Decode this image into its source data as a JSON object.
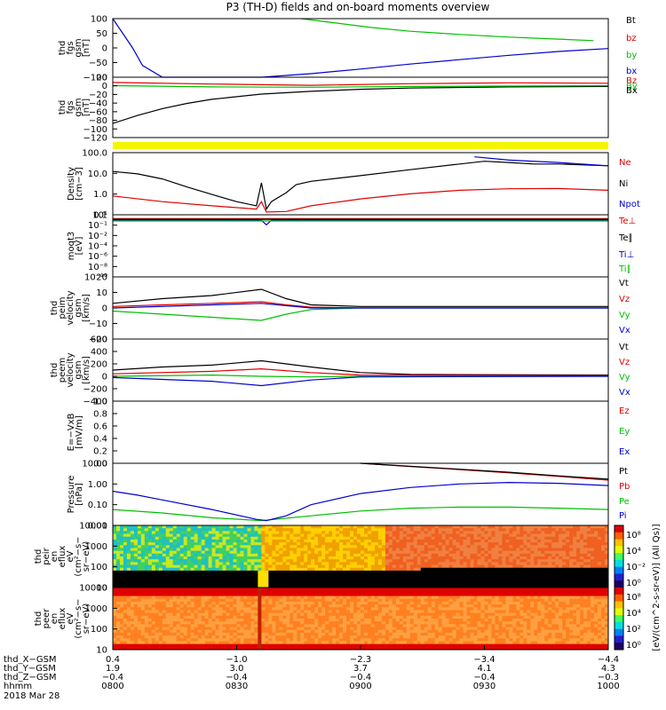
{
  "title": "P3 (TH-D) fields and on-board moments overview",
  "colors": {
    "black": "#000000",
    "red": "#e00000",
    "green": "#00c000",
    "blue": "#0000d0",
    "yellow": "#f5f500"
  },
  "chart_data": [
    {
      "type": "line",
      "panel": "fgs_top",
      "ylabel_lines": [
        "thd",
        "fgs",
        "gsm",
        "[nT]"
      ],
      "ylim": [
        -100,
        100
      ],
      "yticks": [
        "100",
        "50",
        "0",
        "−50",
        "−100"
      ],
      "legend": [
        "Bt",
        "bz",
        "by",
        "bx"
      ],
      "series": [
        {
          "name": "by",
          "x": [
            0.38,
            0.45,
            0.52,
            0.6,
            0.7,
            0.8,
            0.9,
            0.97
          ],
          "y": [
            100,
            85,
            70,
            57,
            46,
            37,
            30,
            25
          ]
        },
        {
          "name": "bx",
          "x": [
            0.0,
            0.02,
            0.04,
            0.06,
            0.1,
            0.2,
            0.3,
            0.4,
            0.5,
            0.6,
            0.7,
            0.8,
            0.9,
            1.0
          ],
          "y": [
            100,
            50,
            0,
            -60,
            -100,
            -100,
            -100,
            -88,
            -72,
            -55,
            -40,
            -25,
            -12,
            -2
          ]
        }
      ]
    },
    {
      "type": "line",
      "panel": "fgs_bottom",
      "ylabel_lines": [
        "thd",
        "fgs",
        "gsm",
        "[nT]"
      ],
      "ylim": [
        -130,
        20
      ],
      "yticks": [
        "20",
        "0",
        "−20",
        "−40",
        "−60",
        "−80",
        "−100",
        "−120"
      ],
      "legend": [
        "Bz",
        "By",
        "Bx"
      ],
      "series": [
        {
          "name": "Bx",
          "x": [
            0.0,
            0.05,
            0.1,
            0.15,
            0.2,
            0.3,
            0.4,
            0.5,
            0.6,
            0.8,
            1.0
          ],
          "y": [
            -95,
            -75,
            -58,
            -45,
            -35,
            -22,
            -15,
            -10,
            -7,
            -4,
            -3
          ]
        },
        {
          "name": "Bz",
          "x": [
            0.0,
            0.2,
            0.4,
            0.6,
            0.8,
            1.0
          ],
          "y": [
            7,
            3,
            0,
            4,
            6,
            5
          ]
        },
        {
          "name": "By",
          "x": [
            0.0,
            0.2,
            0.4,
            0.6,
            0.8,
            1.0
          ],
          "y": [
            -1,
            -4,
            -5,
            -3,
            -2,
            -1
          ]
        }
      ]
    },
    {
      "type": "line",
      "panel": "density",
      "ylabel_lines": [
        "Density",
        "[cm−3]"
      ],
      "yscale": "log",
      "ylim": [
        0.1,
        200
      ],
      "yticks": [
        "100.0",
        "10.0",
        "1.0",
        "0.1"
      ],
      "legend": [
        "Ne",
        "Ni",
        "Npot"
      ],
      "series": [
        {
          "name": "Ni",
          "x": [
            0.0,
            0.05,
            0.1,
            0.15,
            0.2,
            0.25,
            0.29,
            0.3,
            0.31,
            0.32,
            0.35,
            0.37,
            0.4,
            0.5,
            0.6,
            0.7,
            0.75,
            0.8,
            0.85,
            0.9,
            1.0
          ],
          "y": [
            20,
            15,
            8,
            3,
            1.2,
            0.5,
            0.3,
            5,
            0.2,
            0.5,
            1.5,
            4,
            6,
            12,
            25,
            50,
            70,
            60,
            50,
            50,
            40
          ]
        },
        {
          "name": "Ne",
          "x": [
            0.0,
            0.1,
            0.2,
            0.29,
            0.3,
            0.31,
            0.35,
            0.4,
            0.5,
            0.6,
            0.7,
            0.8,
            0.9,
            1.0
          ],
          "y": [
            1.0,
            0.5,
            0.3,
            0.2,
            0.5,
            0.14,
            0.15,
            0.3,
            0.7,
            1.3,
            2.0,
            2.4,
            2.5,
            2.0
          ]
        },
        {
          "name": "Npot",
          "x": [
            0.73,
            0.8,
            0.9,
            1.0
          ],
          "y": [
            120,
            80,
            60,
            40
          ]
        }
      ]
    },
    {
      "type": "line",
      "panel": "temperature",
      "ylabel_lines": [
        "moqt3",
        "[eV]"
      ],
      "yscale": "log",
      "ylim": [
        1e-10,
        20
      ],
      "yticks": [
        "10¹",
        "10⁻¹",
        "10⁻²",
        "10⁻⁴",
        "10⁻⁶",
        "10⁻⁸",
        "10⁻¹⁰"
      ],
      "legend": [
        "Te⊥",
        "Te∥",
        "Ti⊥",
        "Ti∥"
      ],
      "series": [
        {
          "name": "Te⊥",
          "x": [
            0.0,
            0.5,
            1.0
          ],
          "y": [
            4,
            4,
            4
          ]
        },
        {
          "name": "Te∥",
          "x": [
            0.0,
            0.5,
            1.0
          ],
          "y": [
            3,
            3,
            3
          ]
        },
        {
          "name": "Ti⊥",
          "x": [
            0.0,
            0.3,
            0.31,
            0.32,
            1.0
          ],
          "y": [
            2,
            2,
            0.3,
            2,
            2
          ]
        },
        {
          "name": "Ti∥",
          "x": [
            0.0,
            0.5,
            1.0
          ],
          "y": [
            1.5,
            1.5,
            1.5
          ]
        }
      ]
    },
    {
      "type": "line",
      "panel": "peim_velocity",
      "ylabel_lines": [
        "thd",
        "peim",
        "velocity",
        "gsm",
        "[km/s]"
      ],
      "ylim": [
        -20,
        20
      ],
      "yticks": [
        "20",
        "10",
        "0",
        "−10",
        "−20"
      ],
      "legend": [
        "Vt",
        "Vz",
        "Vy",
        "Vx"
      ],
      "series": [
        {
          "name": "Vt",
          "x": [
            0.0,
            0.1,
            0.2,
            0.3,
            0.35,
            0.4,
            0.5,
            1.0
          ],
          "y": [
            3,
            6,
            8,
            12,
            6,
            2,
            1,
            1
          ]
        },
        {
          "name": "Vz",
          "x": [
            0.0,
            0.1,
            0.2,
            0.3,
            0.35,
            0.4,
            0.5,
            1.0
          ],
          "y": [
            1,
            2,
            3,
            4,
            2,
            0.5,
            0,
            0
          ]
        },
        {
          "name": "Vy",
          "x": [
            0.0,
            0.1,
            0.2,
            0.3,
            0.35,
            0.4,
            0.5,
            1.0
          ],
          "y": [
            -2,
            -4,
            -6,
            -8,
            -4,
            -1,
            0,
            0
          ]
        },
        {
          "name": "Vx",
          "x": [
            0.0,
            0.2,
            0.3,
            0.4,
            1.0
          ],
          "y": [
            0,
            2,
            3,
            0,
            0
          ]
        }
      ]
    },
    {
      "type": "line",
      "panel": "peem_velocity",
      "ylabel_lines": [
        "thd",
        "peem",
        "velocity",
        "gsm",
        "[km/s]"
      ],
      "ylim": [
        -400,
        600
      ],
      "yticks": [
        "600",
        "400",
        "200",
        "0",
        "−200",
        "−400"
      ],
      "legend": [
        "Vt",
        "Vz",
        "Vy",
        "Vx"
      ],
      "series": [
        {
          "name": "Vt",
          "x": [
            0.0,
            0.1,
            0.2,
            0.3,
            0.4,
            0.5,
            0.6,
            1.0
          ],
          "y": [
            100,
            150,
            180,
            250,
            150,
            60,
            30,
            20
          ]
        },
        {
          "name": "Vz",
          "x": [
            0.0,
            0.2,
            0.3,
            0.4,
            0.5,
            1.0
          ],
          "y": [
            40,
            80,
            120,
            60,
            20,
            10
          ]
        },
        {
          "name": "Vy",
          "x": [
            0.0,
            0.2,
            0.3,
            0.4,
            0.5,
            1.0
          ],
          "y": [
            0,
            20,
            0,
            -10,
            0,
            0
          ]
        },
        {
          "name": "Vx",
          "x": [
            0.0,
            0.2,
            0.3,
            0.4,
            0.5,
            1.0
          ],
          "y": [
            -20,
            -80,
            -150,
            -60,
            -10,
            0
          ]
        }
      ]
    },
    {
      "type": "line",
      "panel": "efield",
      "ylabel_lines": [
        "E=−VxB",
        "[mV/m]"
      ],
      "ylim": [
        0,
        1
      ],
      "yticks": [
        "1.0",
        "0.8",
        "0.6",
        "0.4",
        "0.2",
        "0.0"
      ],
      "legend": [
        "Ez",
        "Ey",
        "Ex"
      ],
      "series": []
    },
    {
      "type": "line",
      "panel": "pressure",
      "ylabel_lines": [
        "Pressure",
        "[nPa]"
      ],
      "yscale": "log",
      "ylim": [
        0.005,
        40
      ],
      "yticks": [
        "10.00",
        "1.00",
        "0.10",
        "0.01"
      ],
      "legend": [
        "Pt",
        "Pb",
        "Pe",
        "Pi"
      ],
      "series": [
        {
          "name": "Pb",
          "x": [
            0.5,
            0.6,
            0.7,
            0.8,
            0.9,
            1.0
          ],
          "y": [
            40,
            25,
            16,
            10,
            6,
            3.5
          ]
        },
        {
          "name": "Pt",
          "x": [
            0.5,
            0.6,
            0.7,
            0.8,
            0.9,
            1.0
          ],
          "y": [
            41,
            26,
            17,
            11,
            6.5,
            4
          ]
        },
        {
          "name": "Pe",
          "x": [
            0.0,
            0.1,
            0.2,
            0.3,
            0.4,
            0.5,
            0.6,
            0.7,
            0.8,
            0.9,
            1.0
          ],
          "y": [
            0.05,
            0.03,
            0.015,
            0.01,
            0.02,
            0.04,
            0.06,
            0.07,
            0.07,
            0.06,
            0.05
          ]
        },
        {
          "name": "Pi",
          "x": [
            0.0,
            0.05,
            0.1,
            0.2,
            0.29,
            0.31,
            0.35,
            0.4,
            0.5,
            0.6,
            0.7,
            0.8,
            0.9,
            1.0
          ],
          "y": [
            0.7,
            0.4,
            0.2,
            0.05,
            0.012,
            0.01,
            0.02,
            0.1,
            0.5,
            1.2,
            2.0,
            2.5,
            2.2,
            1.6
          ]
        }
      ]
    },
    {
      "type": "heatmap",
      "panel": "peir_spectrogram",
      "ylabel_lines": [
        "thd",
        "peir",
        "en",
        "eflux",
        "eV",
        "(cm²−s−",
        "sr−eV)"
      ],
      "yscale": "log",
      "ylim": [
        5,
        30000
      ],
      "yticks": [
        "10000",
        "1000",
        "100",
        "10"
      ]
    },
    {
      "type": "heatmap",
      "panel": "peer_spectrogram",
      "ylabel_lines": [
        "thd",
        "peer",
        "en",
        "eflux",
        "eV",
        "(cm²−s−",
        "sr−eV)"
      ],
      "yscale": "log",
      "ylim": [
        5,
        30000
      ],
      "yticks": [
        "10000",
        "1000",
        "100",
        "10"
      ]
    }
  ],
  "colorbar": {
    "label": "[eV/(cm^2-s-sr-eV)] (All Qs)]",
    "ticks": [
      "10⁸",
      "10⁴",
      "10⁻²",
      "10⁰"
    ],
    "ticks_lower": [
      "10⁸",
      "10⁴",
      "10²",
      "10⁰"
    ]
  },
  "xaxis": {
    "row_labels": [
      "thd_X−GSM",
      "thd_Y−GSM",
      "thd_Z−GSM",
      "hhmm",
      "2018 Mar 28"
    ],
    "ticks": [
      {
        "x": "0.4",
        "y": "1.9",
        "z": "−0.4",
        "hhmm": "0800"
      },
      {
        "x": "−1.0",
        "y": "3.0",
        "z": "−0.4",
        "hhmm": "0830"
      },
      {
        "x": "−2.3",
        "y": "3.7",
        "z": "−0.4",
        "hhmm": "0900"
      },
      {
        "x": "−3.4",
        "y": "4.1",
        "z": "−0.4",
        "hhmm": "0930"
      },
      {
        "x": "−4.4",
        "y": "4.3",
        "z": "−0.3",
        "hhmm": "1000"
      }
    ]
  }
}
